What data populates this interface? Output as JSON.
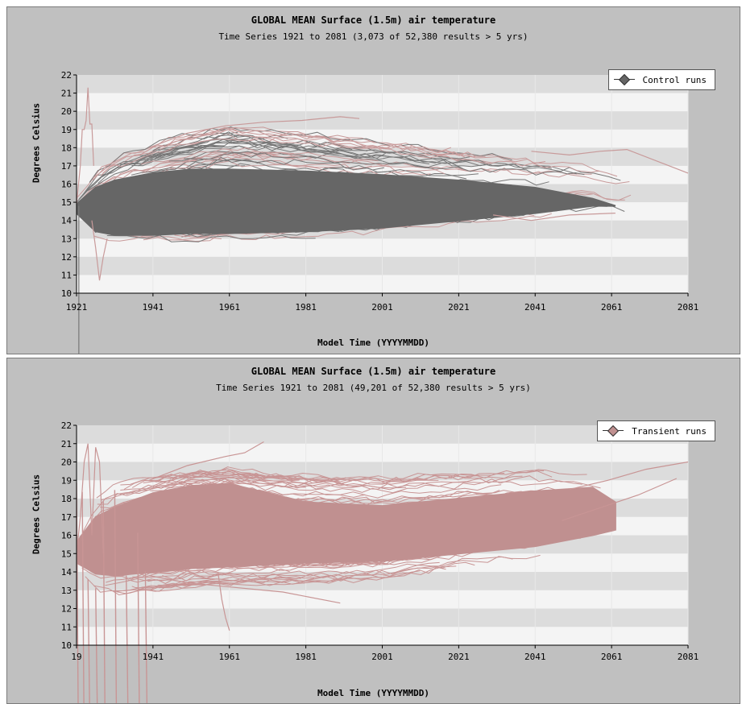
{
  "chart_data": [
    {
      "type": "line",
      "title": "GLOBAL MEAN Surface (1.5m) air temperature",
      "subtitle": "Time Series 1921 to 2081 (3,073 of 52,380 results > 5 yrs)",
      "xlabel": "Model Time (YYYYMMDD)",
      "ylabel": "Degrees Celsius",
      "xlim": [
        1921,
        2081
      ],
      "ylim": [
        10,
        22
      ],
      "x_ticks": [
        "1921",
        "1941",
        "1961",
        "1981",
        "2001",
        "2021",
        "2041",
        "2061",
        "2081"
      ],
      "y_ticks": [
        "10",
        "11",
        "12",
        "13",
        "14",
        "15",
        "16",
        "17",
        "18",
        "19",
        "20",
        "21",
        "22"
      ],
      "grid": "horizontal bands",
      "legend_position": "top-right",
      "series": [
        {
          "name": "Control runs",
          "color": "#666666",
          "envelope": {
            "x": [
              1921,
              1926,
              1931,
              1941,
              1951,
              1961,
              1981,
              2001,
              2021,
              2041,
              2056,
              2062
            ],
            "upper": [
              15.2,
              16.6,
              17.4,
              18.2,
              18.8,
              19.2,
              18.8,
              18.3,
              17.8,
              17.4,
              17.0,
              16.5
            ],
            "core_upper": [
              14.9,
              15.8,
              16.2,
              16.6,
              16.8,
              16.8,
              16.7,
              16.5,
              16.2,
              15.8,
              15.2,
              14.8
            ],
            "core_lower": [
              14.4,
              13.4,
              13.2,
              13.2,
              13.3,
              13.3,
              13.4,
              13.6,
              14.0,
              14.4,
              14.8,
              14.8
            ],
            "lower": [
              14.2,
              13.0,
              13.0,
              13.0,
              12.9,
              13.0,
              13.1,
              13.4,
              13.8,
              14.2,
              14.5,
              14.5
            ]
          },
          "highlight_runs": [
            {
              "x": [
                1921,
                1922,
                1922.5,
                1923,
                1923.5,
                1924,
                1924.5,
                1925,
                1925.5
              ],
              "y": [
                14.9,
                17.0,
                19.0,
                19.0,
                19.5,
                21.3,
                19.3,
                19.3,
                17.0
              ]
            },
            {
              "x": [
                1940,
                1950,
                1960,
                1970,
                1980,
                1990,
                1995
              ],
              "y": [
                18.0,
                18.8,
                19.2,
                19.4,
                19.5,
                19.7,
                19.6
              ]
            },
            {
              "x": [
                1925,
                1926,
                1927,
                1928,
                1929
              ],
              "y": [
                14.0,
                12.5,
                10.7,
                12.0,
                13.0
              ]
            },
            {
              "x": [
                2040,
                2050,
                2058,
                2065,
                2081
              ],
              "y": [
                17.8,
                17.6,
                17.8,
                17.9,
                16.6
              ]
            },
            {
              "x": [
                2030,
                2040,
                2050,
                2062
              ],
              "y": [
                14.3,
                14.0,
                14.3,
                14.4
              ]
            }
          ]
        }
      ]
    },
    {
      "type": "line",
      "title": "GLOBAL MEAN Surface (1.5m) air temperature",
      "subtitle": "Time Series 1921 to 2081 (49,201 of 52,380 results > 5 yrs)",
      "xlabel": "Model Time (YYYYMMDD)",
      "ylabel": "Degrees Celsius",
      "xlim": [
        1921,
        2081
      ],
      "ylim": [
        10,
        22
      ],
      "x_ticks": [
        "19",
        "1941",
        "1961",
        "1981",
        "2001",
        "2021",
        "2041",
        "2061",
        "2081"
      ],
      "y_ticks": [
        "10",
        "11",
        "12",
        "13",
        "14",
        "15",
        "16",
        "17",
        "18",
        "19",
        "20",
        "21",
        "22"
      ],
      "grid": "horizontal bands",
      "legend_position": "top-right",
      "series": [
        {
          "name": "Transient runs",
          "color": "#c09090",
          "envelope": {
            "x": [
              1921,
              1926,
              1931,
              1941,
              1951,
              1961,
              1981,
              2001,
              2021,
              2041,
              2056,
              2062
            ],
            "upper": [
              16.0,
              18.4,
              19.0,
              19.5,
              19.8,
              19.9,
              19.5,
              19.4,
              19.6,
              19.8,
              19.5,
              18.5
            ],
            "core_upper": [
              15.6,
              17.0,
              17.5,
              18.3,
              18.7,
              18.8,
              17.8,
              17.6,
              18.0,
              18.4,
              18.6,
              17.8
            ],
            "core_lower": [
              14.5,
              13.9,
              13.8,
              14.0,
              14.2,
              14.3,
              14.5,
              14.6,
              15.0,
              15.4,
              16.0,
              16.3
            ],
            "lower": [
              14.0,
              13.0,
              12.8,
              13.0,
              13.2,
              13.3,
              13.4,
              13.6,
              14.2,
              14.6,
              15.0,
              15.5
            ]
          },
          "highlight_runs": [
            {
              "x": [
                1921,
                1922,
                1923,
                1924,
                1925,
                1926,
                1927,
                1928
              ],
              "y": [
                15.0,
                17.0,
                20.0,
                21.0,
                16.0,
                20.8,
                20.0,
                15.0
              ]
            },
            {
              "x": [
                1940,
                1950,
                1960,
                1965,
                1970
              ],
              "y": [
                19.0,
                19.8,
                20.3,
                20.5,
                21.1
              ]
            },
            {
              "x": [
                1940,
                1950,
                1960,
                1975,
                1990
              ],
              "y": [
                13.8,
                13.4,
                13.2,
                12.9,
                12.3
              ]
            },
            {
              "x": [
                1958,
                1959,
                1960,
                1961
              ],
              "y": [
                14.0,
                12.5,
                11.5,
                10.8
              ]
            },
            {
              "x": [
                2050,
                2060,
                2070,
                2081
              ],
              "y": [
                18.5,
                19.0,
                19.6,
                20.0
              ]
            },
            {
              "x": [
                2048,
                2058,
                2068,
                2078
              ],
              "y": [
                16.8,
                17.5,
                18.2,
                19.1
              ]
            }
          ],
          "dropouts_below_axis": [
            1921,
            1922.5,
            1924,
            1926,
            1928,
            1931,
            1934,
            1937,
            1939
          ]
        }
      ]
    }
  ]
}
